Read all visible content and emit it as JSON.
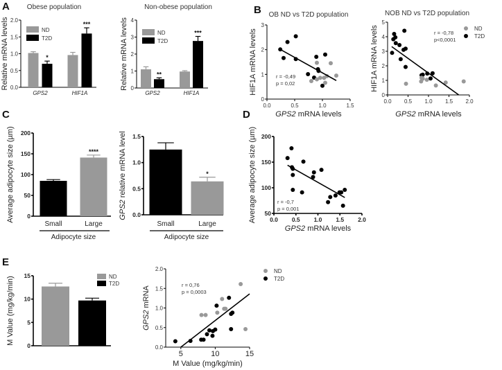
{
  "panels": [
    "A",
    "B",
    "C",
    "D",
    "E"
  ],
  "colors": {
    "ND": "#999999",
    "T2D": "#000000"
  },
  "chart_data": [
    {
      "id": "A1",
      "panel": "A",
      "type": "bar",
      "title": "Obese population",
      "ylabel": "Relative mRNA levels",
      "ylim": [
        0,
        2
      ],
      "yticks": [
        0,
        0.5,
        1,
        1.5,
        2
      ],
      "ytick_labels": [
        "0.0",
        "0.5",
        "1.0",
        "1.5",
        "2.0"
      ],
      "categories": [
        "GPS2",
        "HIF1A"
      ],
      "series": [
        {
          "name": "ND",
          "color": "#999999",
          "values": [
            1.02,
            0.96
          ],
          "errors": [
            0.04,
            0.08
          ],
          "sig": [
            "",
            ""
          ]
        },
        {
          "name": "T2D",
          "color": "#000000",
          "values": [
            0.7,
            1.6
          ],
          "errors": [
            0.08,
            0.17
          ],
          "sig": [
            "*",
            "***"
          ]
        }
      ],
      "legend": [
        "ND",
        "T2D"
      ]
    },
    {
      "id": "A2",
      "panel": "A",
      "type": "bar",
      "title": "Non-obese population",
      "ylabel": "Relative mRNA levels",
      "ylim": [
        0,
        4
      ],
      "yticks": [
        0,
        1,
        2,
        3,
        4
      ],
      "ytick_labels": [
        "0",
        "1",
        "2",
        "3",
        "4"
      ],
      "categories": [
        "GPS2",
        "HIF1A"
      ],
      "series": [
        {
          "name": "ND",
          "color": "#999999",
          "values": [
            1.1,
            0.97
          ],
          "errors": [
            0.15,
            0.05
          ],
          "sig": [
            "",
            ""
          ]
        },
        {
          "name": "T2D",
          "color": "#000000",
          "values": [
            0.52,
            2.77
          ],
          "errors": [
            0.08,
            0.27
          ],
          "sig": [
            "**",
            "***"
          ]
        }
      ],
      "legend": [
        "ND",
        "T2D"
      ]
    },
    {
      "id": "B1",
      "panel": "B",
      "type": "scatter",
      "title": "OB ND vs T2D population",
      "ylabel": "HIF1A mRNA levels",
      "xlabel_italic": "GPS2",
      "xlabel_rest": " mRNA levels",
      "xlim": [
        0,
        1.5
      ],
      "xticks": [
        0,
        0.5,
        1,
        1.5
      ],
      "xtick_labels": [
        "0.0",
        "0.5",
        "1.0",
        "1.5"
      ],
      "ylim": [
        0,
        3
      ],
      "yticks": [
        0,
        1,
        2,
        3
      ],
      "ytick_labels": [
        "0",
        "1",
        "2",
        "3"
      ],
      "series": [
        {
          "name": "T2D",
          "color": "#000000",
          "points": [
            [
              0.24,
              2.01
            ],
            [
              0.3,
              1.66
            ],
            [
              0.37,
              2.31
            ],
            [
              0.52,
              2.54
            ],
            [
              0.52,
              1.62
            ],
            [
              0.74,
              1.01
            ],
            [
              0.85,
              0.87
            ],
            [
              0.89,
              1.71
            ],
            [
              0.92,
              1.21
            ],
            [
              0.93,
              1.14
            ],
            [
              1.05,
              1.8
            ],
            [
              1.0,
              0.54
            ]
          ]
        },
        {
          "name": "ND",
          "color": "#999999",
          "points": [
            [
              0.8,
              0.73
            ],
            [
              0.9,
              0.8
            ],
            [
              0.9,
              1.47
            ],
            [
              0.96,
              0.86
            ],
            [
              1.03,
              0.86
            ],
            [
              1.05,
              0.66
            ],
            [
              1.08,
              0.93
            ],
            [
              1.15,
              1.45
            ],
            [
              1.25,
              0.95
            ]
          ]
        }
      ],
      "fit": [
        [
          0.24,
          2.01
        ],
        [
          1.25,
          0.75
        ]
      ],
      "annotation": [
        "r = -0,49",
        "p = 0,02"
      ]
    },
    {
      "id": "B2",
      "panel": "B",
      "type": "scatter",
      "title": "NOB ND vs T2D population",
      "ylabel": "HIF1A mRNA levels",
      "xlabel_italic": "GPS2",
      "xlabel_rest": " mRNA levels",
      "xlim": [
        0,
        2
      ],
      "xticks": [
        0,
        0.5,
        1,
        1.5,
        2
      ],
      "xtick_labels": [
        "0.0",
        "0.5",
        "1.0",
        "1.5",
        "2.0"
      ],
      "ylim": [
        0,
        5
      ],
      "yticks": [
        0,
        1,
        2,
        3,
        4,
        5
      ],
      "ytick_labels": [
        "0",
        "1",
        "2",
        "3",
        "4",
        "5"
      ],
      "series": [
        {
          "name": "T2D",
          "color": "#000000",
          "points": [
            [
              0.11,
              2.89
            ],
            [
              0.14,
              3.83
            ],
            [
              0.16,
              4.19
            ],
            [
              0.19,
              3.96
            ],
            [
              0.2,
              3.56
            ],
            [
              0.29,
              3.43
            ],
            [
              0.32,
              2.46
            ],
            [
              0.39,
              3.1
            ],
            [
              0.41,
              4.41
            ],
            [
              0.44,
              3.18
            ],
            [
              0.44,
              1.92
            ],
            [
              0.83,
              1.36
            ],
            [
              0.86,
              1.39
            ],
            [
              0.97,
              1.47
            ],
            [
              1.05,
              1.13
            ],
            [
              1.1,
              1.49
            ]
          ]
        },
        {
          "name": "ND",
          "color": "#999999",
          "points": [
            [
              0.45,
              0.77
            ],
            [
              0.82,
              0.93
            ],
            [
              0.83,
              1.18
            ],
            [
              0.86,
              1.12
            ],
            [
              0.96,
              1.04
            ],
            [
              1.18,
              0.65
            ],
            [
              1.42,
              0.85
            ],
            [
              1.86,
              0.93
            ]
          ]
        }
      ],
      "fit": [
        [
          0.1,
          3.32
        ],
        [
          1.74,
          0
        ]
      ],
      "annotation": [
        "r = -0,78",
        "p<0,0001"
      ],
      "legend": [
        "ND",
        "T2D"
      ]
    },
    {
      "id": "C1",
      "panel": "C",
      "type": "bar",
      "ylabel": "Average adipocyte size (µm)",
      "ylim": [
        0,
        200
      ],
      "yticks": [
        0,
        50,
        100,
        150,
        200
      ],
      "ytick_labels": [
        "0",
        "50",
        "100",
        "150",
        "200"
      ],
      "categories": [
        "Small",
        "Large"
      ],
      "series": [
        {
          "name": "Adipocyte size",
          "colors": [
            "#000000",
            "#999999"
          ],
          "values": [
            85,
            141
          ],
          "errors": [
            3,
            6
          ],
          "sig": [
            "",
            "****"
          ]
        }
      ],
      "group_label": "Adipocyte size"
    },
    {
      "id": "C2",
      "panel": "C",
      "type": "bar",
      "ylabel_italic": "GPS2",
      "ylabel_rest": " relative mRNA level",
      "ylim": [
        0,
        1.5
      ],
      "yticks": [
        0,
        0.5,
        1,
        1.5
      ],
      "ytick_labels": [
        "0.0",
        "0.5",
        "1.0",
        "1.5"
      ],
      "categories": [
        "Small",
        "Large"
      ],
      "series": [
        {
          "name": "Adipocyte size",
          "colors": [
            "#000000",
            "#999999"
          ],
          "values": [
            1.25,
            0.64
          ],
          "errors": [
            0.13,
            0.08
          ],
          "sig": [
            "",
            "*"
          ]
        }
      ],
      "group_label": "Adipocyte size"
    },
    {
      "id": "D",
      "panel": "D",
      "type": "scatter",
      "ylabel": "Average adipocyte size (µm)",
      "xlabel_italic": "GPS2",
      "xlabel_rest": " mRNA levels",
      "xlim": [
        0,
        2
      ],
      "xticks": [
        0,
        0.5,
        1,
        1.5,
        2
      ],
      "xtick_labels": [
        "0.0",
        "0.5",
        "1.0",
        "1.5",
        "2.0"
      ],
      "ylim": [
        50,
        200
      ],
      "yticks": [
        50,
        100,
        150,
        200
      ],
      "ytick_labels": [
        "50",
        "100",
        "150",
        "200"
      ],
      "series": [
        {
          "name": "all",
          "color": "#000000",
          "points": [
            [
              0.31,
              158
            ],
            [
              0.4,
              177
            ],
            [
              0.41,
              140
            ],
            [
              0.43,
              137
            ],
            [
              0.43,
              125
            ],
            [
              0.43,
              96
            ],
            [
              0.64,
              91
            ],
            [
              0.67,
              151
            ],
            [
              0.89,
              121
            ],
            [
              0.91,
              130
            ],
            [
              1.08,
              135
            ],
            [
              1.23,
              72
            ],
            [
              1.28,
              82
            ],
            [
              1.4,
              85
            ],
            [
              1.49,
              91
            ],
            [
              1.53,
              91
            ],
            [
              1.61,
              96
            ],
            [
              1.57,
              65
            ]
          ]
        }
      ],
      "fit": [
        [
          0.31,
          144
        ],
        [
          1.61,
          81
        ]
      ],
      "annotation": [
        "r = -0,7",
        "p = 0,001"
      ]
    },
    {
      "id": "E1",
      "panel": "E",
      "type": "bar",
      "ylabel": "M Value  (mg/kg/min)",
      "ylim": [
        0,
        15
      ],
      "yticks": [
        0,
        5,
        10,
        15
      ],
      "ytick_labels": [
        "0",
        "5",
        "10",
        "15"
      ],
      "categories": [
        "ND",
        "T2D"
      ],
      "series": [
        {
          "name": "M Value",
          "colors": [
            "#999999",
            "#000000"
          ],
          "values": [
            12.7,
            9.7
          ],
          "errors": [
            0.7,
            0.5
          ],
          "sig": [
            "",
            ""
          ]
        }
      ],
      "legend": [
        "ND",
        "T2D"
      ]
    },
    {
      "id": "E2",
      "panel": "E",
      "type": "scatter",
      "ylabel_italic": "GPS2",
      "ylabel_rest": " mRNA",
      "xlabel": "M Value (mg/kg/min)",
      "xlim": [
        2.8,
        15
      ],
      "xticks": [
        5,
        10,
        15
      ],
      "xtick_labels": [
        "5",
        "10",
        "15"
      ],
      "ylim": [
        0,
        2
      ],
      "yticks": [
        0,
        0.5,
        1,
        1.5,
        2
      ],
      "ytick_labels": [
        "0.0",
        "0.5",
        "1.0",
        "1.5",
        "2.0"
      ],
      "series": [
        {
          "name": "T2D",
          "color": "#000000",
          "points": [
            [
              4.2,
              0.15
            ],
            [
              6.4,
              0.16
            ],
            [
              7.96,
              0.19
            ],
            [
              8.3,
              0.19
            ],
            [
              8.8,
              0.33
            ],
            [
              9.15,
              0.43
            ],
            [
              9.6,
              0.29
            ],
            [
              9.66,
              0.41
            ],
            [
              10.0,
              0.45
            ],
            [
              10.2,
              1.06
            ],
            [
              12.0,
              1.26
            ],
            [
              12.3,
              0.85
            ],
            [
              12.5,
              0.88
            ],
            [
              12.3,
              0.46
            ]
          ]
        },
        {
          "name": "ND",
          "color": "#999999",
          "points": [
            [
              8.0,
              0.82
            ],
            [
              8.6,
              0.82
            ],
            [
              10.3,
              0.88
            ],
            [
              11.0,
              1.23
            ],
            [
              11.3,
              0.98
            ],
            [
              11.5,
              0.98
            ],
            [
              13.7,
              1.61
            ],
            [
              14.4,
              0.46
            ]
          ]
        }
      ],
      "fit": [
        [
          5,
          0
        ],
        [
          15,
          1.36
        ]
      ],
      "annotation": [
        "r = 0,76",
        "p = 0,0003"
      ],
      "legend": [
        "ND",
        "T2D"
      ]
    }
  ]
}
